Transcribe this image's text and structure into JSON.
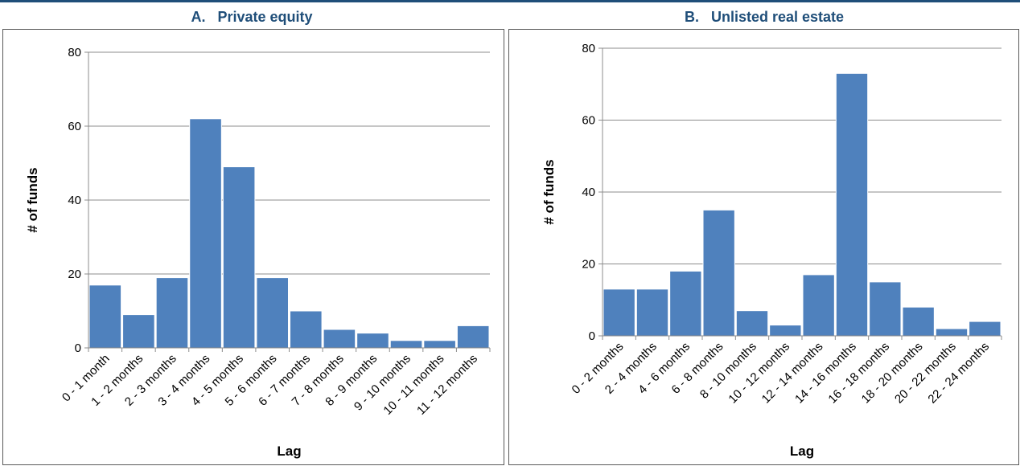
{
  "panels": {
    "a": {
      "title": "A.   Private equity"
    },
    "b": {
      "title": "B.   Unlisted real estate"
    }
  },
  "chart_data": [
    {
      "type": "bar",
      "title": "A.   Private equity",
      "xlabel": "Lag",
      "ylabel": "# of funds",
      "ylim": [
        0,
        80
      ],
      "yticks": [
        0,
        20,
        40,
        60,
        80
      ],
      "grid": true,
      "bar_color": "#4f81bd",
      "categories": [
        "0 - 1 month",
        "1 - 2 months",
        "2 - 3 months",
        "3 - 4 months",
        "4 - 5 months",
        "5 - 6 months",
        "6 - 7 months",
        "7 - 8 months",
        "8 - 9 months",
        "9 - 10 months",
        "10 - 11 months",
        "11 - 12 months"
      ],
      "values": [
        17,
        9,
        19,
        62,
        49,
        19,
        10,
        5,
        4,
        2,
        2,
        6
      ]
    },
    {
      "type": "bar",
      "title": "B.   Unlisted real estate",
      "xlabel": "Lag",
      "ylabel": "# of funds",
      "ylim": [
        0,
        80
      ],
      "yticks": [
        0,
        20,
        40,
        60,
        80
      ],
      "grid": true,
      "bar_color": "#4f81bd",
      "categories": [
        "0 - 2 months",
        "2 - 4 months",
        "4 - 6 months",
        "6 - 8 months",
        "8 - 10 months",
        "10 - 12 months",
        "12 - 14 months",
        "14 - 16 months",
        "16 - 18 months",
        "18 - 20 months",
        "20 - 22 months",
        "22 - 24 months"
      ],
      "values": [
        13,
        13,
        18,
        35,
        7,
        3,
        17,
        73,
        15,
        8,
        2,
        4
      ]
    }
  ]
}
